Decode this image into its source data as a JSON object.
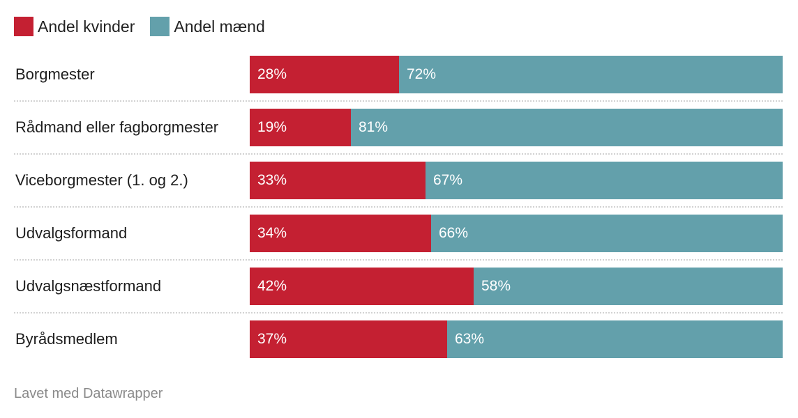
{
  "legend": {
    "women_label": "Andel kvinder",
    "men_label": "Andel mænd"
  },
  "colors": {
    "women": "#c42032",
    "men": "#63a0ab"
  },
  "chart_data": {
    "type": "bar",
    "orientation": "horizontal",
    "stacked": true,
    "normalized": true,
    "categories": [
      "Borgmester",
      "Rådmand eller fagborgmester",
      "Viceborgmester (1. og 2.)",
      "Udvalgsformand",
      "Udvalgsnæstformand",
      "Byrådsmedlem"
    ],
    "series": [
      {
        "name": "Andel kvinder",
        "values": [
          28,
          19,
          33,
          34,
          42,
          37
        ],
        "value_labels": [
          "28%",
          "19%",
          "33%",
          "34%",
          "42%",
          "37%"
        ]
      },
      {
        "name": "Andel mænd",
        "values": [
          72,
          81,
          67,
          66,
          58,
          63
        ],
        "value_labels": [
          "72%",
          "81%",
          "67%",
          "66%",
          "58%",
          "63%"
        ]
      }
    ],
    "xlim": [
      0,
      100
    ],
    "legend_position": "top-left"
  },
  "footer": {
    "credit": "Lavet med Datawrapper"
  }
}
